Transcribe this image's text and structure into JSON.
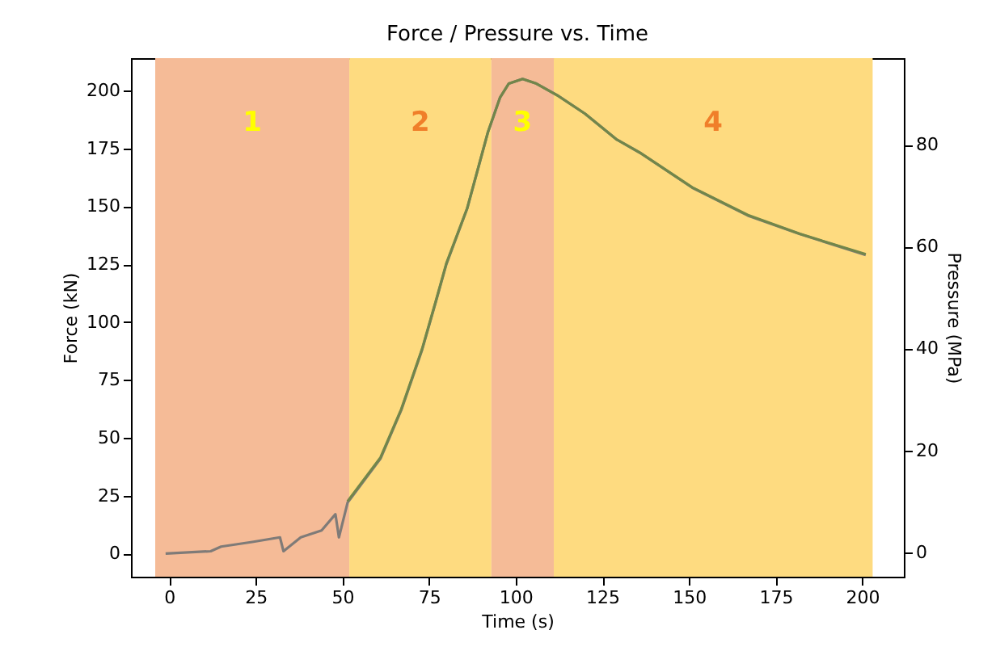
{
  "chart_data": {
    "type": "line",
    "title": "Force / Pressure vs. Time",
    "xlabel": "Time (s)",
    "ylabel": "Force (kN)",
    "y2label": "Pressure (MPa)",
    "xlim": [
      -11,
      212
    ],
    "xticks": [
      0,
      25,
      50,
      75,
      100,
      125,
      150,
      175,
      200
    ],
    "ylim": [
      -10,
      214
    ],
    "yticks": [
      0,
      25,
      50,
      75,
      100,
      125,
      150,
      175,
      200
    ],
    "y2lim": [
      -4.8,
      97
    ],
    "y2ticks": [
      0,
      20,
      40,
      60,
      80
    ],
    "grid": false,
    "marker": "none",
    "line_style": "solid",
    "bands": [
      {
        "axis": "x",
        "from": -4,
        "to": 52,
        "color": "#f5bb97",
        "label": "1"
      },
      {
        "axis": "x",
        "from": 52,
        "to": 93,
        "color": "#fedb80",
        "label": "2"
      },
      {
        "axis": "x",
        "from": 93,
        "to": 111,
        "color": "#f5bb97",
        "label": "3"
      },
      {
        "axis": "x",
        "from": 111,
        "to": 203,
        "color": "#fedb80",
        "label": "4"
      }
    ],
    "series": [
      {
        "color": "#7f7b78",
        "x": [
          -1,
          12,
          15,
          24,
          32,
          33,
          38,
          44,
          48,
          49,
          51.5,
          61,
          67,
          73,
          77,
          80,
          86,
          92,
          95.5,
          98,
          102,
          106,
          112,
          120,
          129,
          136,
          151,
          167,
          182,
          201
        ],
        "values": [
          0,
          1,
          3,
          5,
          7,
          1,
          7,
          10,
          17,
          7,
          22,
          41,
          62,
          88,
          109,
          125,
          149,
          182,
          197,
          203,
          205,
          203,
          198,
          190,
          179,
          173,
          158,
          146,
          138,
          129
        ]
      },
      {
        "color": "#72864a",
        "axis": "y2",
        "x": [
          51.5,
          61,
          67,
          73,
          77,
          80,
          86,
          92,
          95.5,
          98,
          102,
          106,
          112,
          120,
          129,
          136,
          151,
          167,
          182,
          201
        ],
        "values": [
          10,
          18.6,
          28.1,
          39.9,
          49.4,
          56.7,
          67.5,
          82.5,
          89.3,
          92,
          92.9,
          92,
          89.7,
          86.1,
          81.1,
          78.4,
          71.6,
          66.2,
          62.5,
          58.5
        ]
      }
    ]
  }
}
